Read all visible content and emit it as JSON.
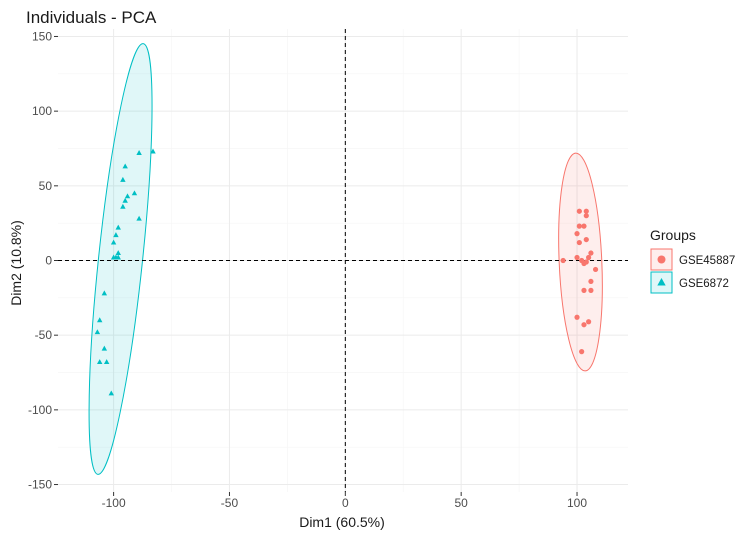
{
  "chart_data": {
    "type": "scatter",
    "title": "Individuals - PCA",
    "xlabel": "Dim1 (60.5%)",
    "ylabel": "Dim2 (10.8%)",
    "xlim": [
      -124,
      122
    ],
    "ylim": [
      -155,
      155
    ],
    "xticks": [
      -100,
      -50,
      0,
      50,
      100
    ],
    "yticks": [
      -150,
      -100,
      -50,
      0,
      50,
      100,
      150
    ],
    "grid": true,
    "reference_lines": {
      "x": 0,
      "y": 0,
      "style": "dashed"
    },
    "legend": {
      "title": "Groups",
      "position": "right"
    },
    "series": [
      {
        "name": "GSE45887",
        "marker": "circle",
        "color": "#F8766D",
        "points": [
          [
            101,
            33
          ],
          [
            104,
            33
          ],
          [
            104,
            30
          ],
          [
            103,
            23
          ],
          [
            101,
            23
          ],
          [
            100,
            18
          ],
          [
            104,
            14
          ],
          [
            101,
            12
          ],
          [
            106,
            5
          ],
          [
            100,
            2
          ],
          [
            105,
            2
          ],
          [
            94,
            0
          ],
          [
            102,
            0
          ],
          [
            104,
            -1
          ],
          [
            103,
            -2
          ],
          [
            108,
            -6
          ],
          [
            106,
            -14
          ],
          [
            103,
            -20
          ],
          [
            106,
            -20
          ],
          [
            100,
            -38
          ],
          [
            105,
            -41
          ],
          [
            103,
            -43
          ],
          [
            102,
            -61
          ]
        ],
        "ellipse": {
          "cx": 101.5,
          "cy": -1,
          "rx": 9.2,
          "ry": 73,
          "angle_deg": -2.5
        }
      },
      {
        "name": "GSE6872",
        "marker": "triangle",
        "color": "#00BFC4",
        "points": [
          [
            -83,
            73
          ],
          [
            -89,
            72
          ],
          [
            -95,
            63
          ],
          [
            -96,
            54
          ],
          [
            -91,
            45
          ],
          [
            -94,
            43
          ],
          [
            -95,
            40
          ],
          [
            -96,
            36
          ],
          [
            -89,
            28
          ],
          [
            -98,
            22
          ],
          [
            -99,
            17
          ],
          [
            -100,
            12
          ],
          [
            -98,
            5
          ],
          [
            -99,
            2
          ],
          [
            -98,
            2
          ],
          [
            -100,
            2
          ],
          [
            -104,
            -22
          ],
          [
            -106,
            -40
          ],
          [
            -107,
            -48
          ],
          [
            -104,
            -59
          ],
          [
            -103,
            -68
          ],
          [
            -106,
            -68
          ],
          [
            -101,
            -89
          ]
        ],
        "ellipse": {
          "cx": -97,
          "cy": 1,
          "rx": 9.5,
          "ry": 145,
          "angle_deg": 6
        }
      }
    ]
  }
}
